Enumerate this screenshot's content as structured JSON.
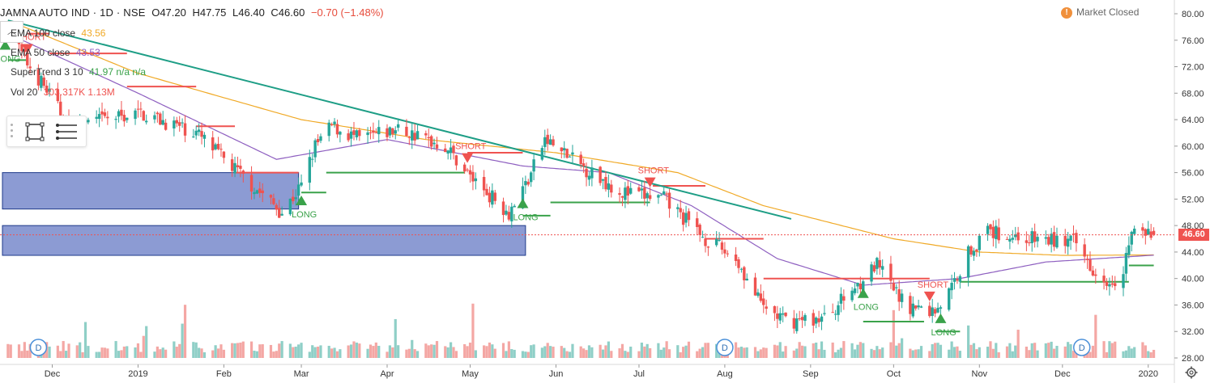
{
  "header": {
    "symbol": "JAMNA AUTO IND · 1D · NSE",
    "open": "O47.20",
    "high": "H47.75",
    "low": "L46.40",
    "close": "C46.60",
    "change": "−0.70 (−1.48%)"
  },
  "collapse_glyph": "︿",
  "market_status": {
    "icon": "!",
    "text": "Market Closed"
  },
  "indicators": [
    {
      "name": "EMA 100 close",
      "value": "43.56",
      "color": "#f0a926"
    },
    {
      "name": "EMA 50 close",
      "value": "43.53",
      "color": "#8e5fc0"
    },
    {
      "name": "SuperTrend 3 10",
      "value": "41.97  n/a  n/a",
      "color": "#3aa24a"
    },
    {
      "name": "Vol 20",
      "value": "303.317K  1.13M",
      "color": "#ef5350"
    }
  ],
  "drawing_tools": [
    "rectangle-tool-icon",
    "text-lines-icon"
  ],
  "price_tag": "46.60",
  "settings_icon": "gear-icon",
  "colors": {
    "up": "#26a69a",
    "down": "#ef5350",
    "ema100": "#f0a926",
    "ema50": "#8e5fc0",
    "supertrend_up": "#3aa24a",
    "supertrend_down": "#ef5350",
    "trendline": "#1e9e86",
    "zone_fill": "#6b7fc7",
    "zone_border": "#1e3a8a",
    "axis_text": "#333333",
    "volume_up": "#8fcfc7",
    "volume_down": "#f4a7a4"
  },
  "chart_data": {
    "type": "candlestick",
    "x_tick_labels": [
      "Dec",
      "2019",
      "Feb",
      "Mar",
      "Apr",
      "May",
      "Jun",
      "Jul",
      "Aug",
      "Sep",
      "Oct",
      "Nov",
      "Dec",
      "2020"
    ],
    "y_tick_labels": [
      "80.00",
      "76.00",
      "72.00",
      "68.00",
      "64.00",
      "60.00",
      "56.00",
      "52.00",
      "48.00",
      "44.00",
      "40.00",
      "36.00",
      "32.00",
      "28.00"
    ],
    "ylim": [
      28,
      81
    ],
    "close_anchors": [
      {
        "date": "2018-11-15",
        "close": 77.5
      },
      {
        "date": "2018-11-22",
        "close": 72.5
      },
      {
        "date": "2018-11-29",
        "close": 68.5
      },
      {
        "date": "2018-12-07",
        "close": 63.0
      },
      {
        "date": "2018-12-20",
        "close": 64.0
      },
      {
        "date": "2019-01-02",
        "close": 65.0
      },
      {
        "date": "2019-01-22",
        "close": 62.0
      },
      {
        "date": "2019-02-01",
        "close": 58.0
      },
      {
        "date": "2019-02-14",
        "close": 53.0
      },
      {
        "date": "2019-02-22",
        "close": 50.0
      },
      {
        "date": "2019-03-01",
        "close": 54.0
      },
      {
        "date": "2019-03-06",
        "close": 60.0
      },
      {
        "date": "2019-03-12",
        "close": 63.0
      },
      {
        "date": "2019-03-22",
        "close": 61.0
      },
      {
        "date": "2019-04-05",
        "close": 62.5
      },
      {
        "date": "2019-04-22",
        "close": 60.0
      },
      {
        "date": "2019-05-02",
        "close": 55.0
      },
      {
        "date": "2019-05-15",
        "close": 50.0
      },
      {
        "date": "2019-05-22",
        "close": 55.0
      },
      {
        "date": "2019-05-28",
        "close": 61.0
      },
      {
        "date": "2019-06-10",
        "close": 57.0
      },
      {
        "date": "2019-06-25",
        "close": 53.0
      },
      {
        "date": "2019-07-10",
        "close": 52.0
      },
      {
        "date": "2019-07-25",
        "close": 46.0
      },
      {
        "date": "2019-08-05",
        "close": 43.0
      },
      {
        "date": "2019-08-14",
        "close": 36.0
      },
      {
        "date": "2019-08-23",
        "close": 33.5
      },
      {
        "date": "2019-09-06",
        "close": 34.0
      },
      {
        "date": "2019-09-20",
        "close": 40.0
      },
      {
        "date": "2019-09-25",
        "close": 42.0
      },
      {
        "date": "2019-10-05",
        "close": 36.0
      },
      {
        "date": "2019-10-15",
        "close": 35.0
      },
      {
        "date": "2019-10-20",
        "close": 37.0
      },
      {
        "date": "2019-10-28",
        "close": 44.0
      },
      {
        "date": "2019-11-04",
        "close": 47.0
      },
      {
        "date": "2019-11-20",
        "close": 46.0
      },
      {
        "date": "2019-12-05",
        "close": 45.5
      },
      {
        "date": "2019-12-15",
        "close": 40.0
      },
      {
        "date": "2019-12-22",
        "close": 40.0
      },
      {
        "date": "2019-12-26",
        "close": 47.0
      },
      {
        "date": "2020-01-03",
        "close": 46.6
      }
    ],
    "ema100_anchors": [
      {
        "date": "2018-11-15",
        "value": 79.0
      },
      {
        "date": "2019-01-01",
        "value": 71.0
      },
      {
        "date": "2019-03-01",
        "value": 64.0
      },
      {
        "date": "2019-04-15",
        "value": 61.0
      },
      {
        "date": "2019-06-01",
        "value": 59.0
      },
      {
        "date": "2019-07-15",
        "value": 56.0
      },
      {
        "date": "2019-08-15",
        "value": 51.0
      },
      {
        "date": "2019-10-01",
        "value": 46.0
      },
      {
        "date": "2019-11-01",
        "value": 44.0
      },
      {
        "date": "2019-12-01",
        "value": 43.5
      },
      {
        "date": "2020-01-03",
        "value": 43.56
      }
    ],
    "ema50_anchors": [
      {
        "date": "2018-11-15",
        "value": 77.0
      },
      {
        "date": "2019-01-01",
        "value": 68.0
      },
      {
        "date": "2019-02-20",
        "value": 58.0
      },
      {
        "date": "2019-04-01",
        "value": 61.0
      },
      {
        "date": "2019-05-20",
        "value": 57.0
      },
      {
        "date": "2019-06-20",
        "value": 56.0
      },
      {
        "date": "2019-07-20",
        "value": 51.0
      },
      {
        "date": "2019-08-20",
        "value": 43.0
      },
      {
        "date": "2019-09-20",
        "value": 39.0
      },
      {
        "date": "2019-10-25",
        "value": 40.0
      },
      {
        "date": "2019-11-25",
        "value": 42.5
      },
      {
        "date": "2020-01-03",
        "value": 43.53
      }
    ],
    "supertrend": [
      {
        "from": "2018-11-15",
        "to": "2018-11-22",
        "value": 73.0,
        "dir": "long"
      },
      {
        "from": "2018-11-22",
        "to": "2018-11-30",
        "value": 77.0,
        "dir": "short"
      },
      {
        "from": "2018-11-30",
        "to": "2018-12-28",
        "value": 74.0,
        "dir": "short"
      },
      {
        "from": "2018-12-28",
        "to": "2019-01-22",
        "value": 69.0,
        "dir": "short"
      },
      {
        "from": "2019-01-22",
        "to": "2019-02-05",
        "value": 63.0,
        "dir": "short"
      },
      {
        "from": "2019-02-05",
        "to": "2019-02-28",
        "value": 56.0,
        "dir": "short"
      },
      {
        "from": "2019-03-01",
        "to": "2019-03-10",
        "value": 53.0,
        "dir": "long"
      },
      {
        "from": "2019-03-10",
        "to": "2019-04-29",
        "value": 56.0,
        "dir": "long"
      },
      {
        "from": "2019-04-30",
        "to": "2019-05-20",
        "value": 59.0,
        "dir": "short"
      },
      {
        "from": "2019-05-20",
        "to": "2019-05-30",
        "value": 49.5,
        "dir": "long"
      },
      {
        "from": "2019-05-30",
        "to": "2019-07-05",
        "value": 51.5,
        "dir": "long"
      },
      {
        "from": "2019-07-06",
        "to": "2019-07-25",
        "value": 54.0,
        "dir": "short"
      },
      {
        "from": "2019-07-25",
        "to": "2019-08-15",
        "value": 46.0,
        "dir": "short"
      },
      {
        "from": "2019-08-15",
        "to": "2019-10-14",
        "value": 40.0,
        "dir": "short"
      },
      {
        "from": "2019-09-20",
        "to": "2019-10-12",
        "value": 33.5,
        "dir": "long"
      },
      {
        "from": "2019-10-16",
        "to": "2019-10-25",
        "value": 32.0,
        "dir": "long"
      },
      {
        "from": "2019-10-25",
        "to": "2019-12-25",
        "value": 39.5,
        "dir": "long"
      },
      {
        "from": "2019-12-25",
        "to": "2020-01-03",
        "value": 41.97,
        "dir": "long"
      }
    ],
    "trendline": {
      "from": {
        "date": "2018-11-15",
        "value": 79.0
      },
      "to": {
        "date": "2019-08-25",
        "value": 49.0
      }
    },
    "zones": [
      {
        "from": "2018-11-13",
        "to": "2019-02-28",
        "low": 50.5,
        "high": 56.0
      },
      {
        "from": "2018-11-13",
        "to": "2019-05-21",
        "low": 43.5,
        "high": 48.0
      }
    ],
    "signals": [
      {
        "date": "2018-11-14",
        "type": "LONG",
        "label": "LONG"
      },
      {
        "date": "2018-11-22",
        "type": "SHORT",
        "label": "SHORT"
      },
      {
        "date": "2019-03-01",
        "type": "LONG",
        "label": "LONG"
      },
      {
        "date": "2019-04-30",
        "type": "SHORT",
        "label": "SHORT"
      },
      {
        "date": "2019-05-20",
        "type": "LONG",
        "label": "LONG"
      },
      {
        "date": "2019-07-05",
        "type": "SHORT",
        "label": "SHORT"
      },
      {
        "date": "2019-09-20",
        "type": "LONG",
        "label": "LONG"
      },
      {
        "date": "2019-10-14",
        "type": "SHORT",
        "label": "SHORT"
      },
      {
        "date": "2019-10-18",
        "type": "LONG",
        "label": "LONG"
      }
    ],
    "dividend_markers": [
      {
        "date": "2018-11-26",
        "label": "D"
      },
      {
        "date": "2019-08-01",
        "label": "D"
      },
      {
        "date": "2019-12-08",
        "label": "D"
      }
    ],
    "current_price": 46.6
  }
}
